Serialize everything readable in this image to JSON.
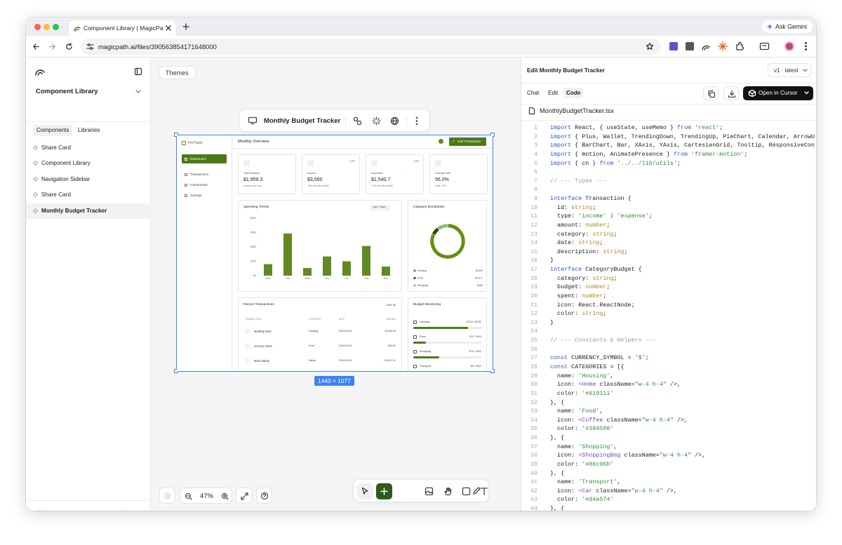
{
  "browser": {
    "tab_title": "Component Library | MagicPa",
    "ask": "Ask Gemini",
    "url": "magicpath.ai/files/390563854171648000"
  },
  "sidebar": {
    "title": "Component Library",
    "tabs": [
      "Components",
      "Libraries"
    ],
    "items": [
      "Share Card",
      "Component Library",
      "Navigation Sidebar",
      "Share Card",
      "Monthly Budget Tracker"
    ]
  },
  "canvas": {
    "themes": "Themes",
    "toolbar_title": "Monthly Budget Tracker",
    "frame_size": "1440 × 1077",
    "zoom": "47%"
  },
  "preview": {
    "brand": "FinTrack",
    "nav": [
      "Dashboard",
      "Transactions",
      "Investments",
      "Savings"
    ],
    "heading": "Monthly Overview",
    "add_button": "Add Transaction",
    "cards": [
      {
        "label": "Total Balance",
        "value": "$1,959.3",
        "note": "Updated just now"
      },
      {
        "label": "Income",
        "value": "$3,500",
        "note": "+5% from last month",
        "badge": "+12%"
      },
      {
        "label": "Expenses",
        "value": "$1,540.7",
        "note": "+2% from last month",
        "badge": "-10%"
      },
      {
        "label": "Savings Rate",
        "value": "56.0%",
        "note": "Goal: 20%"
      }
    ],
    "spending": {
      "title": "Spending Trends",
      "range": "Last 7 days",
      "categories": [
        "Mon",
        "Tue",
        "Wed",
        "Thu",
        "Fri",
        "Sat",
        "Sun"
      ],
      "values": [
        120,
        440,
        80,
        200,
        150,
        310,
        95
      ],
      "color": "#628a22",
      "ylim": [
        0,
        600
      ],
      "yticks": [
        {
          "value": 0,
          "label": "$0"
        },
        {
          "value": 150,
          "label": "$150"
        },
        {
          "value": 300,
          "label": "$300"
        },
        {
          "value": 450,
          "label": "$450"
        },
        {
          "value": 600,
          "label": "$600"
        }
      ]
    },
    "breakdown": {
      "title": "Category Breakdown",
      "items": [
        {
          "name": "Housing",
          "value": 1200,
          "label": "$1200",
          "color": "#619111"
        },
        {
          "name": "Food",
          "value": 110.7,
          "label": "$110.7",
          "color": "#394508"
        },
        {
          "name": "Shopping",
          "value": 150,
          "label": "$150",
          "color": "#86c06b"
        }
      ]
    },
    "transactions": {
      "title": "Recent Transactions",
      "view_all": "View All",
      "columns": [
        "TRANSACTION",
        "CATEGORY",
        "DATE",
        "AMOUNT"
      ],
      "rows": [
        [
          "Monthly Rent",
          "Housing",
          "2024-03-01",
          "-$1200.00"
        ],
        [
          "Grocery Store",
          "Food",
          "2024-03-02",
          "-$45.50"
        ],
        [
          "Main Salary",
          "Salary",
          "2024-03-01",
          "+$3500.00"
        ]
      ]
    },
    "budget": {
      "title": "Budget Monitoring",
      "items": [
        {
          "name": "Housing",
          "label": "$1200 / $1500",
          "spent": 1200,
          "budget": 1500
        },
        {
          "name": "Food",
          "label": "$111 / $600",
          "spent": 111,
          "budget": 600
        },
        {
          "name": "Shopping",
          "label": "$150 / $400",
          "spent": 150,
          "budget": 400
        },
        {
          "name": "Transport",
          "label": "$80 / $300",
          "spent": 80,
          "budget": 300
        }
      ]
    }
  },
  "editor": {
    "title": "Edit Monthly Budget Tracker",
    "version": "v1 · latest",
    "tabs": [
      "Chat",
      "Edit",
      "Code"
    ],
    "open_button": "Open in Cursor",
    "filename": "MonthlyBudgetTracker.tsx",
    "lines": [
      {
        "n": 1,
        "text": "import React, { useState, useMemo } from 'react';"
      },
      {
        "n": 2,
        "text": "import { Plus, Wallet, TrendingDown, TrendingUp, PieChart, Calendar, ArrowU"
      },
      {
        "n": 3,
        "text": "import { BarChart, Bar, XAxis, YAxis, CartesianGrid, Tooltip, ResponsiveCon"
      },
      {
        "n": 4,
        "text": "import { motion, AnimatePresence } from 'framer-motion';"
      },
      {
        "n": 5,
        "text": "import { cn } from '../../lib/utils';"
      },
      {
        "n": 6
      },
      {
        "n": 7,
        "text": "// --- Types ---"
      },
      {
        "n": 8
      },
      {
        "n": 9,
        "text": "interface Transaction {"
      },
      {
        "n": 10,
        "text": "  id: string;"
      },
      {
        "n": 11,
        "text": "  type: 'income' | 'expense';"
      },
      {
        "n": 12,
        "text": "  amount: number;"
      },
      {
        "n": 13,
        "text": "  category: string;"
      },
      {
        "n": 14,
        "text": "  date: string;"
      },
      {
        "n": 15,
        "text": "  description: string;"
      },
      {
        "n": 16,
        "text": "}"
      },
      {
        "n": 17,
        "text": "interface CategoryBudget {"
      },
      {
        "n": 18,
        "text": "  category: string;"
      },
      {
        "n": 19,
        "text": "  budget: number;"
      },
      {
        "n": 20,
        "text": "  spent: number;"
      },
      {
        "n": 21,
        "text": "  icon: React.ReactNode;"
      },
      {
        "n": 22,
        "text": "  color: string;"
      },
      {
        "n": 23,
        "text": "}"
      },
      {
        "n": 24
      },
      {
        "n": 25,
        "text": "// --- Constants & Helpers ---"
      },
      {
        "n": 26
      },
      {
        "n": 27,
        "text": "const CURRENCY_SYMBOL = '$';"
      },
      {
        "n": 28,
        "text": "const CATEGORIES = [{"
      },
      {
        "n": 29,
        "text": "  name: 'Housing',"
      },
      {
        "n": 30,
        "text": "  icon: <Home className=\"w-4 h-4\" />,"
      },
      {
        "n": 31,
        "text": "  color: '#619111'"
      },
      {
        "n": 32,
        "text": "}, {"
      },
      {
        "n": 33,
        "text": "  name: 'Food',"
      },
      {
        "n": 34,
        "text": "  icon: <Coffee className=\"w-4 h-4\" />,"
      },
      {
        "n": 35,
        "text": "  color: '#394508'"
      },
      {
        "n": 36,
        "text": "}, {"
      },
      {
        "n": 37,
        "text": "  name: 'Shopping',"
      },
      {
        "n": 38,
        "text": "  icon: <ShoppingBag className=\"w-4 h-4\" />,"
      },
      {
        "n": 39,
        "text": "  color: '#86c06b'"
      },
      {
        "n": 40,
        "text": "}, {"
      },
      {
        "n": 41,
        "text": "  name: 'Transport',"
      },
      {
        "n": 42,
        "text": "  icon: <Car className=\"w-4 h-4\" />,"
      },
      {
        "n": 43,
        "text": "  color: '#d4a574'"
      },
      {
        "n": 44,
        "text": "}, {"
      }
    ]
  }
}
